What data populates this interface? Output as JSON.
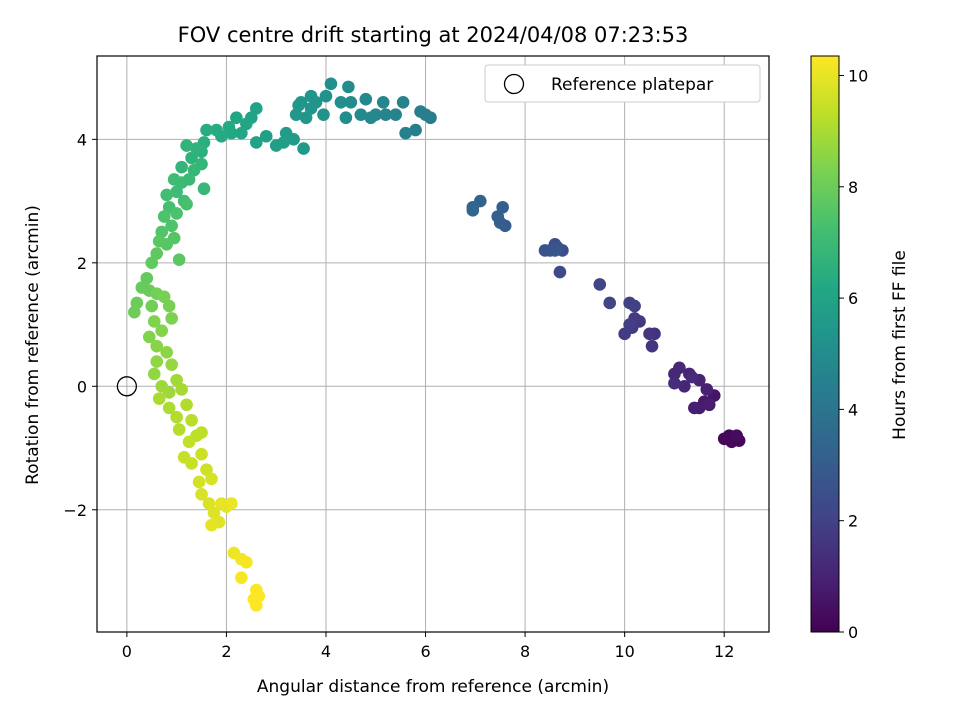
{
  "chart_data": {
    "type": "scatter",
    "title": "FOV centre drift starting at 2024/04/08 07:23:53",
    "xlabel": "Angular distance from reference (arcmin)",
    "ylabel": "Rotation from reference (arcmin)",
    "xlim": [
      -0.6,
      12.9
    ],
    "ylim": [
      -3.98,
      5.35
    ],
    "xticks": [
      0,
      2,
      4,
      6,
      8,
      10,
      12
    ],
    "yticks": [
      -2,
      0,
      2,
      4
    ],
    "xtick_labels": [
      "0",
      "2",
      "4",
      "6",
      "8",
      "10",
      "12"
    ],
    "ytick_labels": [
      "−2",
      "0",
      "2",
      "4"
    ],
    "grid": true,
    "legend": {
      "placement": "top-right",
      "entries": [
        "Reference platepar"
      ]
    },
    "reference_point": {
      "x": 0,
      "y": 0,
      "marker": "open-circle"
    },
    "colorbar": {
      "label": "Hours from first FF file",
      "range": [
        0,
        10.35
      ],
      "ticks": [
        0,
        2,
        4,
        6,
        8,
        10
      ],
      "tick_labels": [
        "0",
        "2",
        "4",
        "6",
        "8",
        "10"
      ],
      "colormap": "viridis"
    },
    "points": [
      [
        12.2,
        -0.85,
        0.0
      ],
      [
        12.1,
        -0.8,
        0.1
      ],
      [
        12.3,
        -0.88,
        0.15
      ],
      [
        12.15,
        -0.9,
        0.2
      ],
      [
        12.0,
        -0.85,
        0.25
      ],
      [
        12.25,
        -0.8,
        0.3
      ],
      [
        11.8,
        -0.15,
        0.6
      ],
      [
        11.6,
        -0.25,
        0.7
      ],
      [
        11.5,
        -0.35,
        0.8
      ],
      [
        11.7,
        -0.3,
        0.85
      ],
      [
        11.4,
        -0.35,
        0.9
      ],
      [
        11.65,
        -0.05,
        0.95
      ],
      [
        11.5,
        0.1,
        1.0
      ],
      [
        11.3,
        0.2,
        1.05
      ],
      [
        11.2,
        0.0,
        1.1
      ],
      [
        11.0,
        0.2,
        1.15
      ],
      [
        11.1,
        0.3,
        1.2
      ],
      [
        11.35,
        0.15,
        1.25
      ],
      [
        11.0,
        0.05,
        1.3
      ],
      [
        10.6,
        0.85,
        1.5
      ],
      [
        10.5,
        0.85,
        1.55
      ],
      [
        10.55,
        0.65,
        1.6
      ],
      [
        10.3,
        1.05,
        1.7
      ],
      [
        10.2,
        1.1,
        1.75
      ],
      [
        10.15,
        0.95,
        1.8
      ],
      [
        10.0,
        0.85,
        1.85
      ],
      [
        10.1,
        1.0,
        1.9
      ],
      [
        10.2,
        1.3,
        1.95
      ],
      [
        10.1,
        1.35,
        2.0
      ],
      [
        9.7,
        1.35,
        2.1
      ],
      [
        9.5,
        1.65,
        2.15
      ],
      [
        8.7,
        1.85,
        2.35
      ],
      [
        8.75,
        2.2,
        2.4
      ],
      [
        8.6,
        2.3,
        2.5
      ],
      [
        8.5,
        2.2,
        2.6
      ],
      [
        8.65,
        2.25,
        2.65
      ],
      [
        8.4,
        2.2,
        2.7
      ],
      [
        8.6,
        2.2,
        2.75
      ],
      [
        7.6,
        2.6,
        3.0
      ],
      [
        7.5,
        2.65,
        3.05
      ],
      [
        7.45,
        2.75,
        3.1
      ],
      [
        7.55,
        2.9,
        3.15
      ],
      [
        7.1,
        3.0,
        3.25
      ],
      [
        6.95,
        2.85,
        3.35
      ],
      [
        6.95,
        2.9,
        3.4
      ],
      [
        6.1,
        4.35,
        4.3
      ],
      [
        6.0,
        4.4,
        4.35
      ],
      [
        5.9,
        4.45,
        4.4
      ],
      [
        5.8,
        4.15,
        4.45
      ],
      [
        5.6,
        4.1,
        4.5
      ],
      [
        5.55,
        4.6,
        4.55
      ],
      [
        5.4,
        4.4,
        4.6
      ],
      [
        5.2,
        4.4,
        4.65
      ],
      [
        5.15,
        4.6,
        4.7
      ],
      [
        5.0,
        4.4,
        4.75
      ],
      [
        4.9,
        4.35,
        4.8
      ],
      [
        4.8,
        4.65,
        4.85
      ],
      [
        4.7,
        4.4,
        4.9
      ],
      [
        4.5,
        4.6,
        4.95
      ],
      [
        4.45,
        4.85,
        5.0
      ],
      [
        4.4,
        4.35,
        5.05
      ],
      [
        4.3,
        4.6,
        5.1
      ],
      [
        4.1,
        4.9,
        5.15
      ],
      [
        4.0,
        4.7,
        5.2
      ],
      [
        3.95,
        4.4,
        5.25
      ],
      [
        3.8,
        4.6,
        5.3
      ],
      [
        3.7,
        4.5,
        5.35
      ],
      [
        3.6,
        4.35,
        5.4
      ],
      [
        3.5,
        4.6,
        5.45
      ],
      [
        3.4,
        4.4,
        5.5
      ],
      [
        3.55,
        3.85,
        5.55
      ],
      [
        3.35,
        4.0,
        5.6
      ],
      [
        3.2,
        4.1,
        5.65
      ],
      [
        3.15,
        3.95,
        5.7
      ],
      [
        3.0,
        3.9,
        5.75
      ],
      [
        3.7,
        4.7,
        5.35
      ],
      [
        3.45,
        4.55,
        5.4
      ],
      [
        2.8,
        4.05,
        5.85
      ],
      [
        2.6,
        3.95,
        5.9
      ],
      [
        2.6,
        4.5,
        5.95
      ],
      [
        2.5,
        4.35,
        6.0
      ],
      [
        2.4,
        4.25,
        6.05
      ],
      [
        2.3,
        4.1,
        6.1
      ],
      [
        2.2,
        4.35,
        6.15
      ],
      [
        2.1,
        4.1,
        6.2
      ],
      [
        2.05,
        4.2,
        6.25
      ],
      [
        1.9,
        4.05,
        6.3
      ],
      [
        1.8,
        4.15,
        6.35
      ],
      [
        1.6,
        4.15,
        6.4
      ],
      [
        1.55,
        3.95,
        6.5
      ],
      [
        1.5,
        3.8,
        6.55
      ],
      [
        1.4,
        3.85,
        6.6
      ],
      [
        1.3,
        3.7,
        6.65
      ],
      [
        1.2,
        3.9,
        6.7
      ],
      [
        1.1,
        3.55,
        6.75
      ],
      [
        1.5,
        3.6,
        6.8
      ],
      [
        1.35,
        3.5,
        6.85
      ],
      [
        1.55,
        3.2,
        6.9
      ],
      [
        1.25,
        3.35,
        6.95
      ],
      [
        1.1,
        3.3,
        7.0
      ],
      [
        1.0,
        3.15,
        7.05
      ],
      [
        0.95,
        3.35,
        7.1
      ],
      [
        1.15,
        3.0,
        7.15
      ],
      [
        0.8,
        3.1,
        7.2
      ],
      [
        0.85,
        2.9,
        7.25
      ],
      [
        1.2,
        2.95,
        7.3
      ],
      [
        1.0,
        2.8,
        7.35
      ],
      [
        0.75,
        2.75,
        7.4
      ],
      [
        0.9,
        2.6,
        7.45
      ],
      [
        0.7,
        2.5,
        7.5
      ],
      [
        0.95,
        2.4,
        7.55
      ],
      [
        0.8,
        2.3,
        7.6
      ],
      [
        0.65,
        2.35,
        7.65
      ],
      [
        1.05,
        2.05,
        7.7
      ],
      [
        0.6,
        2.15,
        7.75
      ],
      [
        0.5,
        2.0,
        7.8
      ],
      [
        0.4,
        1.75,
        7.85
      ],
      [
        0.3,
        1.6,
        7.9
      ],
      [
        0.45,
        1.55,
        7.95
      ],
      [
        0.2,
        1.35,
        8.0
      ],
      [
        0.15,
        1.2,
        8.05
      ],
      [
        0.5,
        1.3,
        8.1
      ],
      [
        0.6,
        1.5,
        8.15
      ],
      [
        0.75,
        1.45,
        8.2
      ],
      [
        0.85,
        1.3,
        8.25
      ],
      [
        0.9,
        1.1,
        8.3
      ],
      [
        0.55,
        1.05,
        8.35
      ],
      [
        0.45,
        0.8,
        8.4
      ],
      [
        0.7,
        0.9,
        8.45
      ],
      [
        0.6,
        0.65,
        8.5
      ],
      [
        0.8,
        0.55,
        8.55
      ],
      [
        0.6,
        0.4,
        8.6
      ],
      [
        0.55,
        0.2,
        8.65
      ],
      [
        0.9,
        0.35,
        8.7
      ],
      [
        0.7,
        0.0,
        8.8
      ],
      [
        0.85,
        -0.1,
        8.85
      ],
      [
        1.0,
        0.1,
        8.9
      ],
      [
        1.1,
        -0.05,
        8.95
      ],
      [
        0.65,
        -0.2,
        9.0
      ],
      [
        0.85,
        -0.35,
        9.05
      ],
      [
        1.2,
        -0.3,
        9.1
      ],
      [
        1.0,
        -0.5,
        9.15
      ],
      [
        1.05,
        -0.7,
        9.2
      ],
      [
        1.3,
        -0.55,
        9.25
      ],
      [
        1.4,
        -0.8,
        9.3
      ],
      [
        1.5,
        -0.75,
        9.35
      ],
      [
        1.25,
        -0.9,
        9.4
      ],
      [
        1.15,
        -1.15,
        9.45
      ],
      [
        1.3,
        -1.25,
        9.5
      ],
      [
        1.5,
        -1.1,
        9.55
      ],
      [
        1.6,
        -1.35,
        9.6
      ],
      [
        1.45,
        -1.55,
        9.65
      ],
      [
        1.7,
        -1.5,
        9.7
      ],
      [
        1.5,
        -1.75,
        9.75
      ],
      [
        1.65,
        -1.9,
        9.8
      ],
      [
        1.75,
        -2.05,
        9.85
      ],
      [
        1.85,
        -2.2,
        9.9
      ],
      [
        1.7,
        -2.25,
        9.95
      ],
      [
        2.0,
        -1.95,
        10.0
      ],
      [
        2.1,
        -1.9,
        10.05
      ],
      [
        1.9,
        -1.9,
        10.0
      ],
      [
        2.15,
        -2.7,
        10.1
      ],
      [
        2.3,
        -2.8,
        10.15
      ],
      [
        2.4,
        -2.85,
        10.2
      ],
      [
        2.3,
        -3.1,
        10.25
      ],
      [
        2.6,
        -3.3,
        10.3
      ],
      [
        2.65,
        -3.4,
        10.3
      ],
      [
        2.6,
        -3.55,
        10.35
      ],
      [
        2.55,
        -3.45,
        10.35
      ]
    ]
  }
}
